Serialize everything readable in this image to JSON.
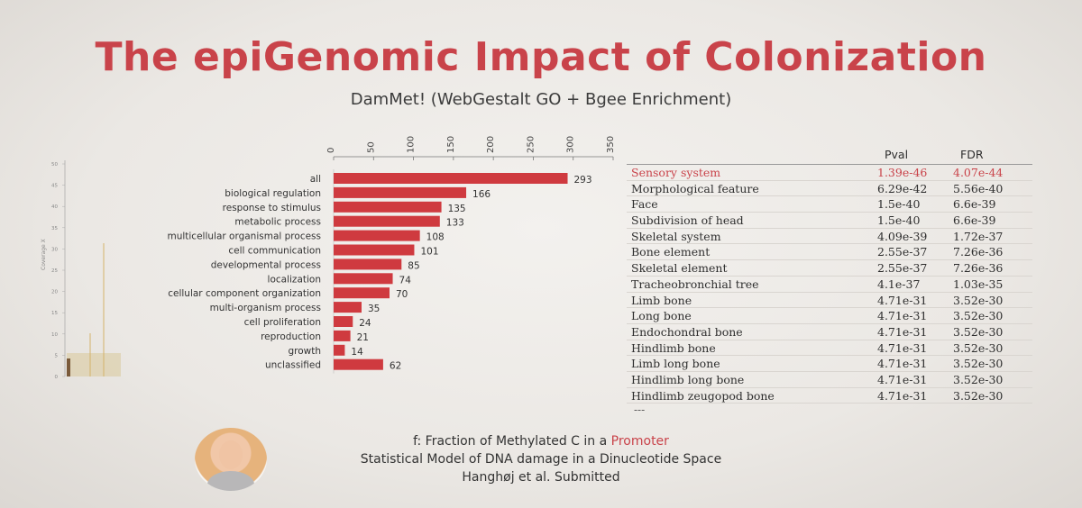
{
  "slide": {
    "title": "The epiGenomic Impact of Colonization",
    "subtitle": "DamMet! (WebGestalt GO + Bgee Enrichment)"
  },
  "chart_data": {
    "type": "bar",
    "orientation": "horizontal",
    "categories": [
      "all",
      "biological regulation",
      "response to stimulus",
      "metabolic process",
      "multicellular organismal process",
      "cell communication",
      "developmental process",
      "localization",
      "cellular component organization",
      "multi-organism process",
      "cell proliferation",
      "reproduction",
      "growth",
      "unclassified"
    ],
    "values": [
      293,
      166,
      135,
      133,
      108,
      101,
      85,
      74,
      70,
      35,
      24,
      21,
      14,
      62
    ],
    "xticks": [
      "0",
      "50",
      "100",
      "150",
      "200",
      "250",
      "300",
      "350"
    ],
    "xlim": [
      0,
      350
    ],
    "xaxis_position": "top",
    "bar_color": "#cf3a3f"
  },
  "table": {
    "col_pval": "Pval",
    "col_fdr": "FDR",
    "rows": [
      {
        "term": "Sensory system",
        "pval": "1.39e-46",
        "fdr": "4.07e-44"
      },
      {
        "term": "Morphological feature",
        "pval": "6.29e-42",
        "fdr": "5.56e-40"
      },
      {
        "term": "Face",
        "pval": "1.5e-40",
        "fdr": "6.6e-39"
      },
      {
        "term": "Subdivision of head",
        "pval": "1.5e-40",
        "fdr": "6.6e-39"
      },
      {
        "term": "Skeletal system",
        "pval": "4.09e-39",
        "fdr": "1.72e-37"
      },
      {
        "term": "Bone element",
        "pval": "2.55e-37",
        "fdr": "7.26e-36"
      },
      {
        "term": "Skeletal element",
        "pval": "2.55e-37",
        "fdr": "7.26e-36"
      },
      {
        "term": "Tracheobronchial tree",
        "pval": "4.1e-37",
        "fdr": "1.03e-35"
      },
      {
        "term": "Limb bone",
        "pval": "4.71e-31",
        "fdr": "3.52e-30"
      },
      {
        "term": "Long bone",
        "pval": "4.71e-31",
        "fdr": "3.52e-30"
      },
      {
        "term": "Endochondral bone",
        "pval": "4.71e-31",
        "fdr": "3.52e-30"
      },
      {
        "term": "Hindlimb bone",
        "pval": "4.71e-31",
        "fdr": "3.52e-30"
      },
      {
        "term": "Limb long bone",
        "pval": "4.71e-31",
        "fdr": "3.52e-30"
      },
      {
        "term": "Hindlimb long bone",
        "pval": "4.71e-31",
        "fdr": "3.52e-30"
      },
      {
        "term": "Hindlimb zeugopod bone",
        "pval": "4.71e-31",
        "fdr": "3.52e-30"
      }
    ],
    "more": "---"
  },
  "footer": {
    "line1_prefix": "f: Fraction of Methylated C in a ",
    "line1_highlight": "Promoter",
    "line2": "Statistical Model of DNA damage in a Dinucleotide Space",
    "line3": "Hanghøj et al. Submitted"
  },
  "left_plot": {
    "ylabel": "Coverage X",
    "yticks": [
      "50",
      "45",
      "40",
      "35",
      "30",
      "25",
      "20",
      "15",
      "10",
      "5",
      "0"
    ]
  },
  "colors": {
    "accent": "#c9434a",
    "bar": "#cf3a3f",
    "text": "#333333"
  }
}
